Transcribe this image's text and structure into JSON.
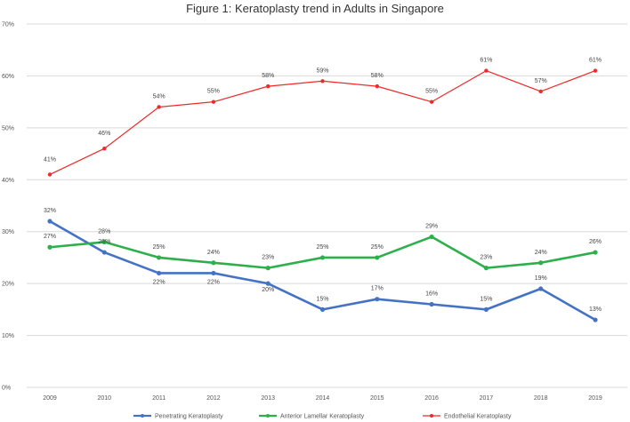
{
  "chart_data": {
    "type": "line",
    "title": "Figure 1: Keratoplasty trend in Adults in Singapore",
    "categories": [
      "2009",
      "2010",
      "2011",
      "2012",
      "2013",
      "2014",
      "2015",
      "2016",
      "2017",
      "2018",
      "2019"
    ],
    "ylim": [
      0,
      70
    ],
    "yticks": [
      0,
      10,
      20,
      30,
      40,
      50,
      60,
      70
    ],
    "ytick_labels": [
      "0%",
      "10%",
      "20%",
      "30%",
      "40%",
      "50%",
      "60%",
      "70%"
    ],
    "grid": true,
    "legend_position": "bottom",
    "series": [
      {
        "name": "Penetrating Keratoplasty",
        "color": "#4472c4",
        "values": [
          32,
          26,
          22,
          22,
          20,
          15,
          17,
          16,
          15,
          19,
          13
        ],
        "labels": [
          "32%",
          "26%",
          "22%",
          "22%",
          "20%",
          "15%",
          "17%",
          "16%",
          "15%",
          "19%",
          "13%"
        ]
      },
      {
        "name": "Anterior Lamellar Keratoplasty",
        "color": "#2db04b",
        "values": [
          27,
          28,
          25,
          24,
          23,
          25,
          25,
          29,
          23,
          24,
          26
        ],
        "labels": [
          "27%",
          "28%",
          "25%",
          "24%",
          "23%",
          "25%",
          "25%",
          "29%",
          "23%",
          "24%",
          "26%"
        ]
      },
      {
        "name": "Endothelial Keratoplasty",
        "color": "#ee2a2a",
        "values": [
          41,
          46,
          54,
          55,
          58,
          59,
          58,
          55,
          61,
          57,
          61
        ],
        "labels": [
          "41%",
          "46%",
          "54%",
          "55%",
          "58%",
          "59%",
          "58%",
          "55%",
          "61%",
          "57%",
          "61%"
        ]
      }
    ]
  }
}
